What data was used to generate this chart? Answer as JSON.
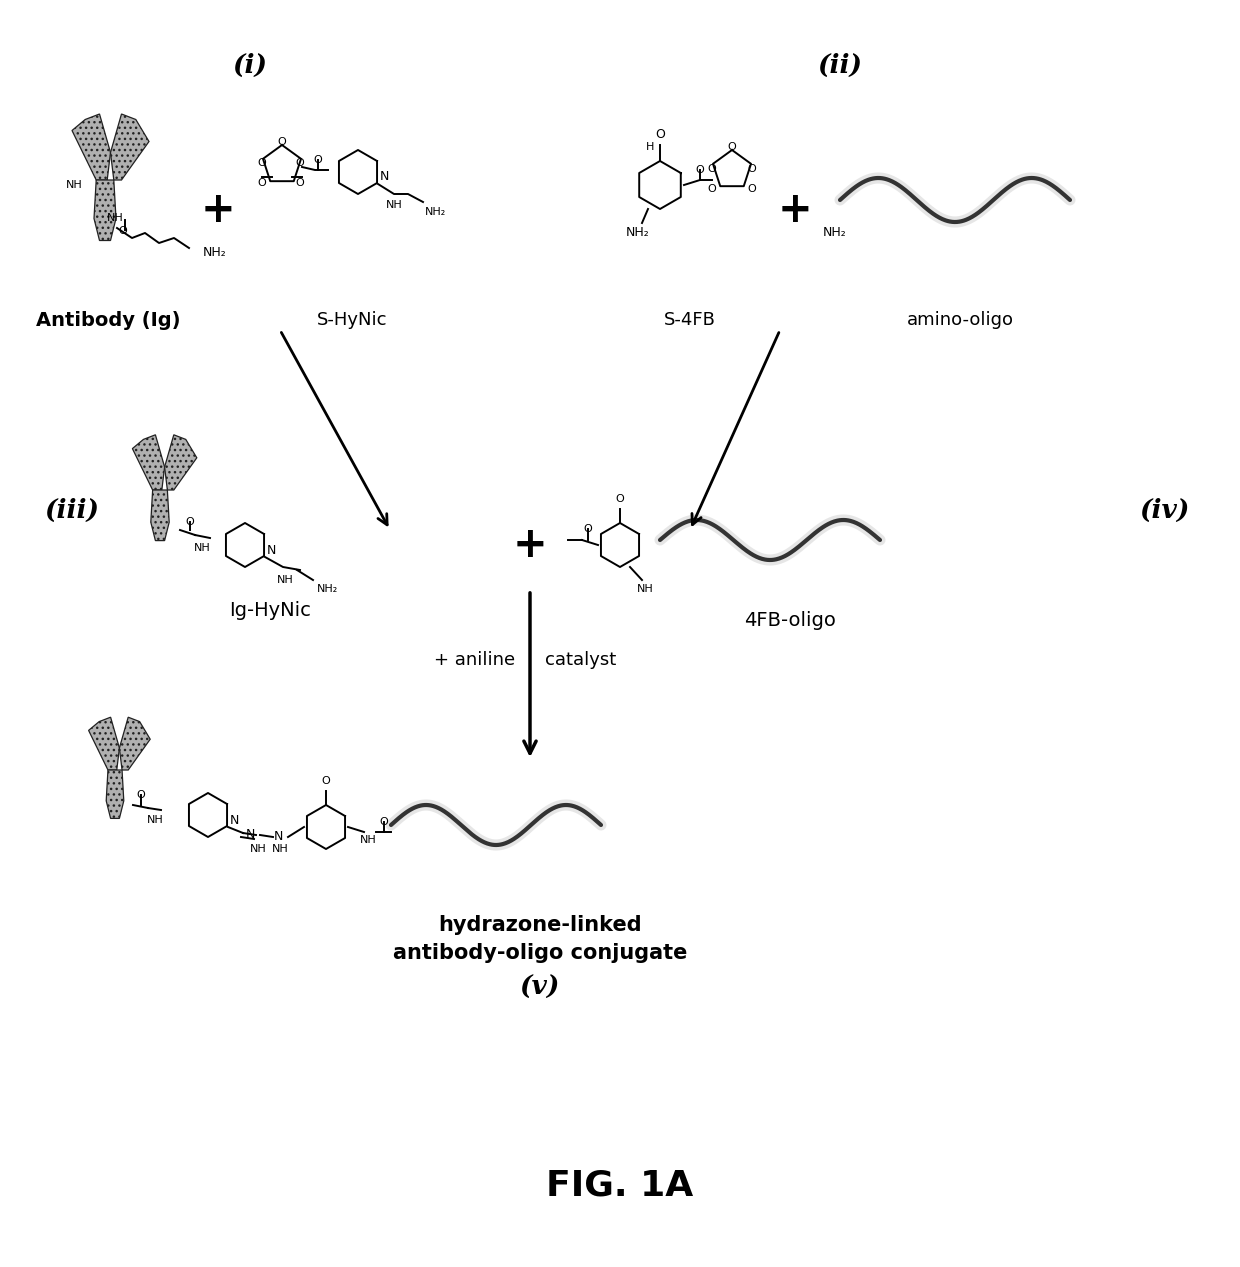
{
  "title": "FIG. 1A",
  "title_fontsize": 26,
  "background_color": "#ffffff",
  "fig_width": 12.4,
  "fig_height": 12.67,
  "dpi": 100,
  "labels": {
    "i": "(i)",
    "ii": "(ii)",
    "iii": "(iii)",
    "iv": "(iv)",
    "v": "(v)",
    "antibody": "Antibody (Ig)",
    "shynic": "S-HyNic",
    "s4fb": "S-4FB",
    "amino_oligo": "amino-oligo",
    "ig_hynic": "Ig-HyNic",
    "fb_oligo": "4FB-oligo",
    "aniline": "+ aniline",
    "catalyst": "catalyst",
    "product_line1": "hydrazone-linked",
    "product_line2": "antibody-oligo conjugate"
  },
  "antibody_color": "#b0b0b0",
  "antibody_edge": "#222222",
  "oligo_color": "#888888",
  "structure_lw": 1.4,
  "arrow_lw": 2.0
}
